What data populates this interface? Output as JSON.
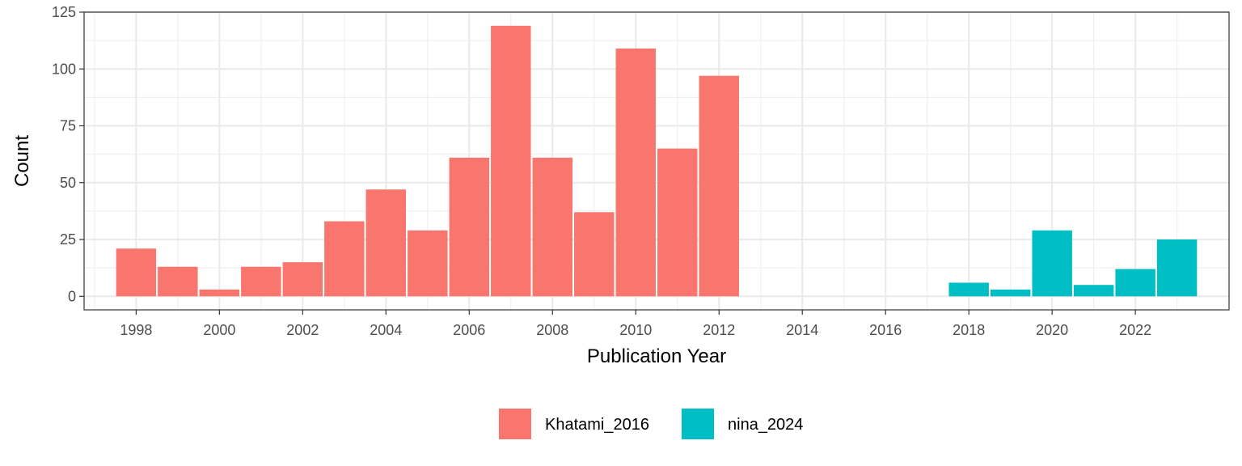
{
  "chart_data": {
    "type": "bar",
    "xlabel": "Publication Year",
    "ylabel": "Count",
    "xlim": [
      1996.75,
      2024.25
    ],
    "ylim": [
      -5.95,
      125
    ],
    "x_ticks": [
      1998,
      2000,
      2002,
      2004,
      2006,
      2008,
      2010,
      2012,
      2014,
      2016,
      2018,
      2020,
      2022
    ],
    "y_ticks": [
      0,
      25,
      50,
      75,
      100,
      125
    ],
    "grid": true,
    "legend_position": "bottom",
    "series": [
      {
        "name": "Khatami_2016",
        "color": "#F8766D",
        "x": [
          1998,
          1999,
          2000,
          2001,
          2002,
          2003,
          2004,
          2005,
          2006,
          2007,
          2008,
          2009,
          2010,
          2011,
          2012
        ],
        "values": [
          21,
          13,
          3,
          13,
          15,
          33,
          47,
          29,
          61,
          119,
          61,
          37,
          109,
          65,
          97
        ]
      },
      {
        "name": "nina_2024",
        "color": "#00BFC4",
        "x": [
          2018,
          2019,
          2020,
          2021,
          2022,
          2023
        ],
        "values": [
          6,
          3,
          29,
          5,
          12,
          25
        ]
      }
    ]
  }
}
